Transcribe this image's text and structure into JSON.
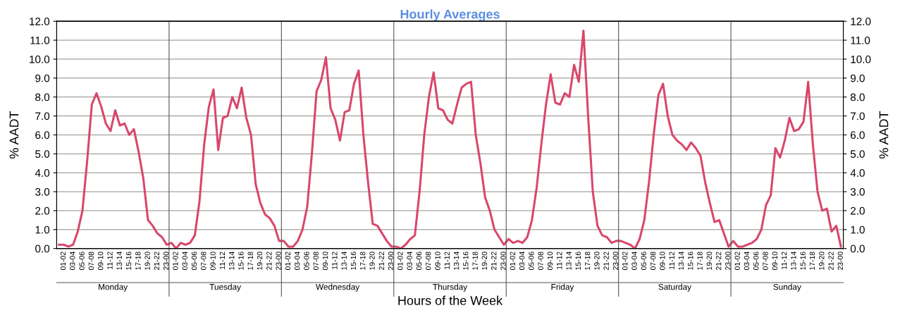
{
  "chart_data": {
    "type": "line",
    "title": "Hourly Averages",
    "ylabel": "% AADT",
    "y2label": "% AADT",
    "xlabel": "Hours of the Week",
    "categories": [
      null,
      "01-02",
      null,
      "03-04",
      null,
      "05-06",
      null,
      "07-08",
      null,
      "09-10",
      null,
      "11-12",
      null,
      "13-14",
      null,
      "15-16",
      null,
      "17-18",
      null,
      "19-20",
      null,
      "21-22",
      null,
      "23-00",
      null,
      "01-02",
      null,
      "03-04",
      null,
      "05-06",
      null,
      "07-08",
      null,
      "09-10",
      null,
      "11-12",
      null,
      "13-14",
      null,
      "15-16",
      null,
      "17-18",
      null,
      "19-20",
      null,
      "21-22",
      null,
      "23-00",
      null,
      "01-02",
      null,
      "03-04",
      null,
      "05-06",
      null,
      "07-08",
      null,
      "09-10",
      null,
      "11-12",
      null,
      "13-14",
      null,
      "15-16",
      null,
      "17-18",
      null,
      "19-20",
      null,
      "21-22",
      null,
      "23-00",
      null,
      "01-02",
      null,
      "03-04",
      null,
      "05-06",
      null,
      "07-08",
      null,
      "09-10",
      null,
      "11-12",
      null,
      "13-14",
      null,
      "15-16",
      null,
      "17-18",
      null,
      "19-20",
      null,
      "21-22",
      null,
      "23-00",
      null,
      "01-02",
      null,
      "03-04",
      null,
      "05-06",
      null,
      "07-08",
      null,
      "09-10",
      null,
      "11-12",
      null,
      "13-14",
      null,
      "15-16",
      null,
      "17-18",
      null,
      "19-20",
      null,
      "21-22",
      null,
      "23-00",
      null,
      "01-02",
      null,
      "03-04",
      null,
      "05-06",
      null,
      "07-08",
      null,
      "09-10",
      null,
      "11-12",
      null,
      "13-14",
      null,
      "15-16",
      null,
      "17-18",
      null,
      "19-20",
      null,
      "21-22",
      null,
      "23-00",
      null,
      "01-02",
      null,
      "03-04",
      null,
      "05-06",
      null,
      "07-08",
      null,
      "09-10",
      null,
      "11-12",
      null,
      "13-14",
      null,
      "15-16",
      null,
      "17-18",
      null,
      "19-20",
      null,
      "21-22",
      null,
      "23-00"
    ],
    "annotations": [
      "Monday",
      "Tuesday",
      "Wednesday",
      "Thursday",
      "Friday",
      "Saturday",
      "Sunday"
    ],
    "series": [
      {
        "color": "#d9476b",
        "values": [
          0.2,
          0.2,
          0.1,
          0.2,
          0.9,
          2.0,
          4.6,
          7.6,
          8.2,
          7.5,
          6.6,
          6.2,
          7.3,
          6.5,
          6.6,
          6.0,
          6.3,
          5.1,
          3.7,
          1.5,
          1.2,
          0.8,
          0.6,
          0.2,
          0.3,
          0.0,
          0.3,
          0.2,
          0.3,
          0.7,
          2.5,
          5.5,
          7.5,
          8.4,
          5.2,
          6.9,
          7.0,
          8.0,
          7.4,
          8.5,
          6.9,
          6.0,
          3.4,
          2.4,
          1.8,
          1.6,
          1.2,
          0.4,
          0.4,
          0.1,
          0.1,
          0.4,
          1.0,
          2.2,
          5.0,
          8.3,
          8.9,
          10.1,
          7.4,
          6.8,
          5.7,
          7.2,
          7.3,
          8.7,
          9.4,
          6.0,
          3.5,
          1.3,
          1.2,
          0.8,
          0.4,
          0.1,
          0.1,
          0.0,
          0.2,
          0.5,
          0.7,
          3.0,
          6.0,
          8.0,
          9.3,
          7.4,
          7.3,
          6.8,
          6.6,
          7.6,
          8.5,
          8.7,
          8.8,
          6.0,
          4.5,
          2.7,
          2.0,
          1.0,
          0.6,
          0.2,
          0.5,
          0.3,
          0.4,
          0.3,
          0.6,
          1.5,
          3.2,
          5.5,
          7.6,
          9.2,
          7.7,
          7.6,
          8.2,
          8.0,
          9.7,
          8.8,
          11.5,
          7.0,
          3.0,
          1.2,
          0.7,
          0.6,
          0.3,
          0.4,
          0.4,
          0.3,
          0.2,
          0.0,
          0.5,
          1.5,
          3.5,
          6.0,
          8.1,
          8.7,
          7.0,
          6.0,
          5.7,
          5.5,
          5.2,
          5.6,
          5.3,
          4.9,
          3.5,
          2.4,
          1.4,
          1.5,
          0.8,
          0.1,
          0.4,
          0.1,
          0.1,
          0.2,
          0.3,
          0.5,
          1.0,
          2.3,
          2.8,
          5.3,
          4.8,
          5.7,
          6.9,
          6.2,
          6.3,
          6.7,
          8.8,
          5.5,
          3.0,
          2.0,
          2.1,
          0.9,
          1.2,
          0.1
        ]
      }
    ],
    "ylim": [
      0,
      12
    ],
    "yticks": [
      {
        "value": 0,
        "label": "0.0"
      },
      {
        "value": 1,
        "label": "1.0"
      },
      {
        "value": 2,
        "label": "2.0"
      },
      {
        "value": 3,
        "label": "3.0"
      },
      {
        "value": 4,
        "label": "4.0"
      },
      {
        "value": 5,
        "label": "5.0"
      },
      {
        "value": 6,
        "label": "6.0"
      },
      {
        "value": 7,
        "label": "7.0"
      },
      {
        "value": 8,
        "label": "8.0"
      },
      {
        "value": 9,
        "label": "9.0"
      },
      {
        "value": 10,
        "label": "10.0"
      },
      {
        "value": 11,
        "label": "11.0"
      },
      {
        "value": 12,
        "label": "12.0"
      }
    ],
    "y2lim": [
      0,
      12
    ],
    "y2ticks": [
      {
        "value": 0,
        "label": "0.0"
      },
      {
        "value": 1,
        "label": "1.0"
      },
      {
        "value": 2,
        "label": "2.0"
      },
      {
        "value": 3,
        "label": "3.0"
      },
      {
        "value": 4,
        "label": "4.0"
      },
      {
        "value": 5,
        "label": "5.0"
      },
      {
        "value": 6,
        "label": "6.0"
      },
      {
        "value": 7,
        "label": "7.0"
      },
      {
        "value": 8,
        "label": "8.0"
      },
      {
        "value": 9,
        "label": "9.0"
      },
      {
        "value": 10,
        "label": "10.0"
      },
      {
        "value": 11,
        "label": "11.0"
      },
      {
        "value": 12,
        "label": "12.0"
      }
    ],
    "grid": "y",
    "marker": "none",
    "line_style": "solid"
  }
}
